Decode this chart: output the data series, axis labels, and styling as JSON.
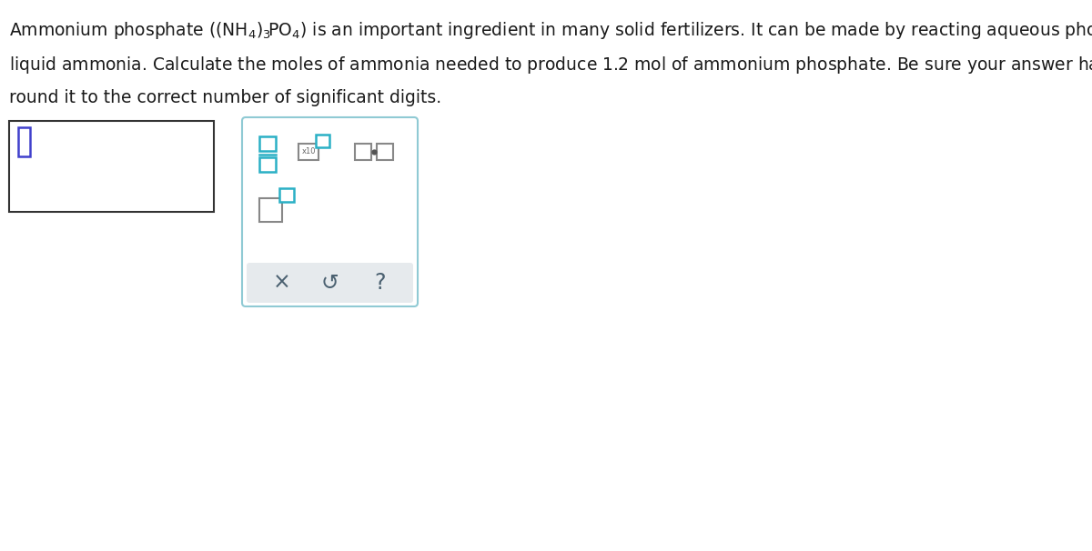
{
  "bg_color": "#ffffff",
  "text_color": "#1a1a1a",
  "teal_color": "#2ab0c5",
  "blue_cursor": "#4040cc",
  "gray_text": "#4a6070",
  "toolbar_bg": "#e6eaed",
  "panel_border": "#90cad4",
  "panel_bg": "#ffffff",
  "gray_icon": "#888888",
  "fig_width": 12.0,
  "fig_height": 6.06,
  "dpi": 100
}
